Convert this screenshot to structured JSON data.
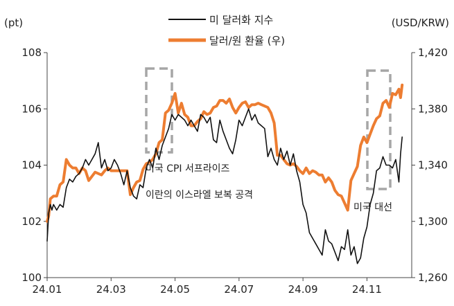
{
  "chart_data": {
    "type": "line",
    "left_unit": "(pt)",
    "right_unit": "(USD/KRW)",
    "x_ticks": [
      "24.01",
      "24.03",
      "24.05",
      "24.07",
      "24.09",
      "24.11"
    ],
    "y_left": {
      "min": 100,
      "max": 108,
      "ticks": [
        "100",
        "102",
        "104",
        "106",
        "108"
      ]
    },
    "y_right": {
      "min": 1260,
      "max": 1420,
      "ticks": [
        "1,260",
        "1,300",
        "1,340",
        "1,380",
        "1,420"
      ]
    },
    "x_range": [
      0,
      11.4
    ],
    "series": [
      {
        "name": "미 달러화 지수",
        "axis": "left",
        "color": "#111111",
        "x": [
          0.0,
          0.05,
          0.1,
          0.15,
          0.2,
          0.3,
          0.4,
          0.5,
          0.6,
          0.7,
          0.8,
          0.9,
          1.0,
          1.1,
          1.2,
          1.3,
          1.4,
          1.5,
          1.6,
          1.7,
          1.8,
          1.9,
          2.0,
          2.1,
          2.2,
          2.3,
          2.4,
          2.5,
          2.6,
          2.7,
          2.8,
          2.9,
          3.0,
          3.1,
          3.2,
          3.3,
          3.4,
          3.5,
          3.6,
          3.7,
          3.8,
          3.9,
          4.0,
          4.1,
          4.2,
          4.3,
          4.4,
          4.5,
          4.6,
          4.7,
          4.8,
          4.9,
          5.0,
          5.1,
          5.2,
          5.3,
          5.4,
          5.5,
          5.6,
          5.7,
          5.8,
          5.9,
          6.0,
          6.1,
          6.2,
          6.3,
          6.4,
          6.5,
          6.6,
          6.7,
          6.8,
          6.9,
          7.0,
          7.1,
          7.2,
          7.3,
          7.4,
          7.5,
          7.6,
          7.7,
          7.8,
          7.9,
          8.0,
          8.1,
          8.2,
          8.3,
          8.4,
          8.5,
          8.6,
          8.7,
          8.8,
          8.9,
          9.0,
          9.1,
          9.2,
          9.3,
          9.4,
          9.5,
          9.6,
          9.7,
          9.8,
          9.9,
          10.0,
          10.1,
          10.2,
          10.3,
          10.4,
          10.5,
          10.6,
          10.7,
          10.8,
          10.9,
          11.0,
          11.05,
          11.1
        ],
        "y": [
          101.3,
          102.3,
          102.6,
          102.4,
          102.6,
          102.4,
          102.6,
          102.5,
          103.2,
          103.5,
          103.4,
          103.6,
          103.7,
          103.9,
          104.2,
          104.0,
          104.2,
          104.4,
          104.8,
          103.9,
          104.2,
          103.8,
          103.9,
          104.2,
          104.0,
          103.7,
          103.3,
          103.8,
          103.2,
          102.9,
          102.8,
          103.3,
          103.2,
          103.9,
          104.2,
          103.9,
          104.6,
          104.2,
          104.7,
          105.0,
          105.3,
          105.8,
          105.6,
          105.8,
          105.7,
          105.6,
          105.4,
          105.6,
          105.4,
          105.2,
          105.8,
          105.7,
          105.5,
          105.7,
          104.9,
          104.8,
          105.6,
          105.2,
          104.9,
          104.6,
          104.4,
          104.9,
          105.6,
          105.4,
          105.7,
          106.0,
          105.6,
          105.8,
          105.5,
          105.4,
          105.3,
          104.3,
          104.6,
          104.2,
          104.0,
          104.6,
          104.2,
          104.5,
          104.0,
          104.4,
          103.8,
          103.4,
          102.6,
          102.3,
          101.6,
          101.4,
          101.2,
          101.0,
          100.8,
          101.7,
          101.3,
          101.2,
          100.9,
          100.6,
          101.1,
          101.0,
          101.7,
          100.8,
          101.1,
          100.5,
          100.7,
          101.4,
          101.8,
          102.6,
          103.0,
          103.8,
          103.9,
          104.3,
          104.0,
          104.0,
          103.9,
          104.2,
          103.4,
          104.4,
          105.0
        ]
      },
      {
        "name": "달러/원 환율 (우)",
        "axis": "right",
        "color": "#ed7d31",
        "x": [
          0.0,
          0.05,
          0.1,
          0.2,
          0.3,
          0.4,
          0.5,
          0.6,
          0.7,
          0.8,
          0.9,
          1.0,
          1.1,
          1.2,
          1.3,
          1.4,
          1.5,
          1.6,
          1.7,
          1.8,
          1.9,
          2.0,
          2.1,
          2.2,
          2.3,
          2.4,
          2.5,
          2.6,
          2.7,
          2.8,
          2.9,
          3.0,
          3.1,
          3.2,
          3.3,
          3.4,
          3.5,
          3.6,
          3.7,
          3.8,
          3.9,
          4.0,
          4.1,
          4.2,
          4.3,
          4.4,
          4.5,
          4.6,
          4.7,
          4.8,
          4.9,
          5.0,
          5.1,
          5.2,
          5.3,
          5.4,
          5.5,
          5.6,
          5.7,
          5.8,
          5.9,
          6.0,
          6.1,
          6.2,
          6.3,
          6.4,
          6.5,
          6.6,
          6.7,
          6.8,
          6.9,
          7.0,
          7.1,
          7.2,
          7.3,
          7.4,
          7.5,
          7.6,
          7.7,
          7.8,
          7.9,
          8.0,
          8.1,
          8.2,
          8.3,
          8.4,
          8.5,
          8.6,
          8.7,
          8.8,
          8.9,
          9.0,
          9.1,
          9.2,
          9.3,
          9.4,
          9.5,
          9.6,
          9.7,
          9.8,
          9.9,
          10.0,
          10.1,
          10.2,
          10.3,
          10.4,
          10.5,
          10.6,
          10.7,
          10.8,
          10.9,
          11.0,
          11.05,
          11.1
        ],
        "y": [
          1300,
          1304,
          1316,
          1318,
          1318,
          1326,
          1328,
          1344,
          1340,
          1338,
          1338,
          1334,
          1338,
          1336,
          1329,
          1332,
          1335,
          1334,
          1333,
          1336,
          1338,
          1336,
          1336,
          1336,
          1336,
          1336,
          1336,
          1319,
          1324,
          1328,
          1329,
          1337,
          1341,
          1342,
          1344,
          1348,
          1356,
          1358,
          1377,
          1379,
          1384,
          1391,
          1377,
          1384,
          1376,
          1374,
          1368,
          1368,
          1371,
          1373,
          1378,
          1376,
          1377,
          1381,
          1382,
          1386,
          1386,
          1384,
          1387,
          1381,
          1377,
          1381,
          1384,
          1385,
          1381,
          1383,
          1383,
          1384,
          1383,
          1382,
          1381,
          1377,
          1370,
          1347,
          1347,
          1344,
          1341,
          1340,
          1341,
          1339,
          1336,
          1334,
          1338,
          1334,
          1336,
          1335,
          1333,
          1333,
          1328,
          1331,
          1328,
          1322,
          1319,
          1318,
          1313,
          1308,
          1329,
          1334,
          1339,
          1354,
          1360,
          1356,
          1362,
          1368,
          1373,
          1375,
          1384,
          1386,
          1381,
          1391,
          1390,
          1394,
          1388,
          1397
        ]
      }
    ],
    "annotations": [
      {
        "text": "미국 CPI 서프라이즈"
      },
      {
        "text": "이란의 이스라엘 보복 공격"
      },
      {
        "text": "미국 대선"
      }
    ]
  }
}
